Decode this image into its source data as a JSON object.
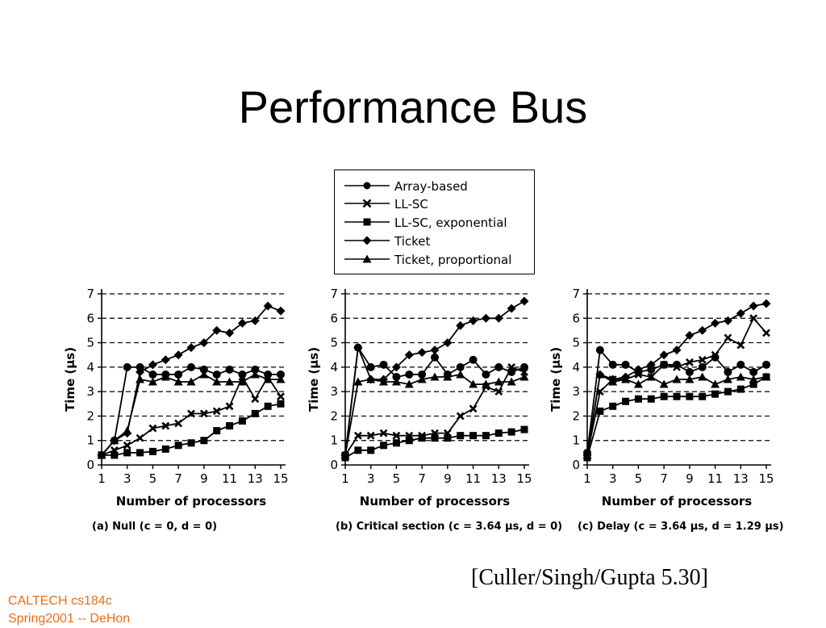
{
  "slide": {
    "title": "Performance Bus",
    "citation": "[Culler/Singh/Gupta 5.30]",
    "footer_line1": "CALTECH cs184c",
    "footer_line2": "Spring2001 -- DeHon"
  },
  "legend": [
    {
      "name": "Array-based",
      "marker": "circle"
    },
    {
      "name": "LL-SC",
      "marker": "x"
    },
    {
      "name": "LL-SC, exponential",
      "marker": "square"
    },
    {
      "name": "Ticket",
      "marker": "diamond"
    },
    {
      "name": "Ticket, proportional",
      "marker": "triangle"
    }
  ],
  "chart_data": [
    {
      "type": "line",
      "caption": "(a) Null (c = 0, d = 0)",
      "xlabel": "Number of processors",
      "ylabel": "Time (μs)",
      "xlim": [
        1,
        15
      ],
      "ylim": [
        0,
        7
      ],
      "xticks": [
        1,
        3,
        5,
        7,
        9,
        11,
        13,
        15
      ],
      "yticks": [
        0,
        1,
        2,
        3,
        4,
        5,
        6,
        7
      ],
      "x": [
        1,
        2,
        3,
        4,
        5,
        6,
        7,
        8,
        9,
        10,
        11,
        12,
        13,
        14,
        15
      ],
      "grid": "dashed horizontal",
      "series": [
        {
          "name": "Array-based",
          "marker": "circle",
          "values": [
            0.4,
            1.0,
            4.0,
            4.0,
            3.7,
            3.7,
            3.7,
            4.0,
            3.9,
            3.7,
            3.9,
            3.7,
            3.9,
            3.7,
            3.7
          ]
        },
        {
          "name": "LL-SC",
          "marker": "x",
          "values": [
            0.4,
            0.6,
            0.8,
            1.1,
            1.5,
            1.6,
            1.7,
            2.1,
            2.1,
            2.2,
            2.4,
            3.6,
            2.7,
            3.6,
            2.8
          ]
        },
        {
          "name": "LL-SC, exponential",
          "marker": "square",
          "values": [
            0.4,
            0.4,
            0.5,
            0.5,
            0.55,
            0.65,
            0.8,
            0.9,
            1.0,
            1.4,
            1.6,
            1.8,
            2.1,
            2.4,
            2.5
          ]
        },
        {
          "name": "Ticket",
          "marker": "diamond",
          "values": [
            0.4,
            1.0,
            1.3,
            3.8,
            4.1,
            4.3,
            4.5,
            4.8,
            5.0,
            5.5,
            5.4,
            5.8,
            5.9,
            6.5,
            6.3
          ]
        },
        {
          "name": "Ticket, proportional",
          "marker": "triangle",
          "values": [
            0.4,
            1.0,
            1.4,
            3.5,
            3.4,
            3.6,
            3.4,
            3.4,
            3.7,
            3.4,
            3.4,
            3.4,
            3.7,
            3.5,
            3.5
          ]
        }
      ]
    },
    {
      "type": "line",
      "caption": "(b) Critical section (c = 3.64 μs, d = 0)",
      "xlabel": "Number of processors",
      "ylabel": "Time (μs)",
      "xlim": [
        1,
        15
      ],
      "ylim": [
        0,
        7
      ],
      "xticks": [
        1,
        3,
        5,
        7,
        9,
        11,
        13,
        15
      ],
      "yticks": [
        0,
        1,
        2,
        3,
        4,
        5,
        6,
        7
      ],
      "x": [
        1,
        2,
        3,
        4,
        5,
        6,
        7,
        8,
        9,
        10,
        11,
        12,
        13,
        14,
        15
      ],
      "grid": "dashed horizontal",
      "series": [
        {
          "name": "Array-based",
          "marker": "circle",
          "values": [
            0.4,
            4.8,
            4.0,
            4.1,
            3.6,
            3.7,
            3.7,
            4.4,
            3.7,
            4.0,
            4.3,
            3.7,
            4.0,
            3.8,
            4.0
          ]
        },
        {
          "name": "LL-SC",
          "marker": "x",
          "values": [
            0.4,
            1.2,
            1.2,
            1.3,
            1.2,
            1.2,
            1.2,
            1.3,
            1.3,
            2.0,
            2.3,
            3.2,
            3.0,
            4.0,
            3.8
          ]
        },
        {
          "name": "LL-SC, exponential",
          "marker": "square",
          "values": [
            0.3,
            0.6,
            0.6,
            0.8,
            0.9,
            1.0,
            1.1,
            1.1,
            1.1,
            1.2,
            1.2,
            1.2,
            1.3,
            1.35,
            1.45
          ]
        },
        {
          "name": "Ticket",
          "marker": "diamond",
          "values": [
            0.4,
            4.8,
            3.5,
            3.5,
            4.0,
            4.5,
            4.6,
            4.7,
            5.0,
            5.7,
            5.9,
            6.0,
            6.0,
            6.4,
            6.7
          ]
        },
        {
          "name": "Ticket, proportional",
          "marker": "triangle",
          "values": [
            0.4,
            3.4,
            3.5,
            3.4,
            3.4,
            3.3,
            3.5,
            3.6,
            3.6,
            3.7,
            3.3,
            3.3,
            3.4,
            3.4,
            3.6
          ]
        }
      ]
    },
    {
      "type": "line",
      "caption": "(c) Delay (c = 3.64 μs, d = 1.29 μs)",
      "xlabel": "Number of processors",
      "ylabel": "Time (μs)",
      "xlim": [
        1,
        15
      ],
      "ylim": [
        0,
        7
      ],
      "xticks": [
        1,
        3,
        5,
        7,
        9,
        11,
        13,
        15
      ],
      "yticks": [
        0,
        1,
        2,
        3,
        4,
        5,
        6,
        7
      ],
      "x": [
        1,
        2,
        3,
        4,
        5,
        6,
        7,
        8,
        9,
        10,
        11,
        12,
        13,
        14,
        15
      ],
      "grid": "dashed horizontal",
      "series": [
        {
          "name": "Array-based",
          "marker": "circle",
          "values": [
            0.5,
            4.7,
            4.1,
            4.1,
            3.8,
            3.9,
            4.1,
            4.1,
            3.8,
            4.0,
            4.4,
            3.8,
            4.1,
            3.8,
            4.1
          ]
        },
        {
          "name": "LL-SC",
          "marker": "x",
          "values": [
            0.4,
            3.0,
            3.5,
            3.5,
            3.7,
            3.6,
            4.1,
            4.0,
            4.2,
            4.3,
            4.5,
            5.2,
            4.9,
            6.0,
            5.4
          ]
        },
        {
          "name": "LL-SC, exponential",
          "marker": "square",
          "values": [
            0.3,
            2.2,
            2.4,
            2.6,
            2.7,
            2.7,
            2.8,
            2.8,
            2.8,
            2.8,
            2.9,
            3.0,
            3.1,
            3.3,
            3.6
          ]
        },
        {
          "name": "Ticket",
          "marker": "diamond",
          "values": [
            0.4,
            3.7,
            3.5,
            3.6,
            3.9,
            4.1,
            4.5,
            4.7,
            5.3,
            5.5,
            5.8,
            5.9,
            6.2,
            6.5,
            6.6
          ]
        },
        {
          "name": "Ticket, proportional",
          "marker": "triangle",
          "values": [
            0.4,
            3.7,
            3.4,
            3.5,
            3.3,
            3.6,
            3.3,
            3.5,
            3.5,
            3.6,
            3.3,
            3.5,
            3.6,
            3.5,
            3.6
          ]
        }
      ]
    }
  ]
}
